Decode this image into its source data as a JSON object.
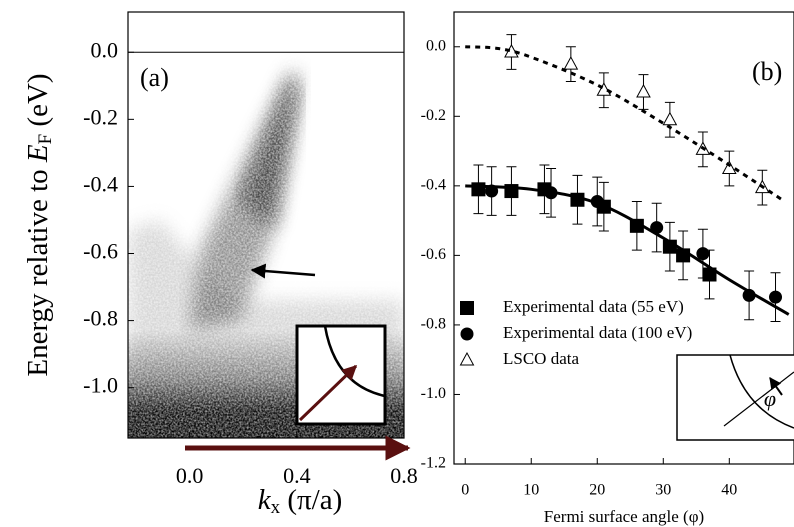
{
  "chart_data": [
    {
      "type": "heatmap",
      "annotation": "(a)",
      "ylabel": {
        "text": "Energy relative to ",
        "var": "E",
        "sub": "F",
        "unit": " (eV)"
      },
      "xlabel": {
        "var": "k",
        "sub": "x",
        "unit": " (π/a)"
      },
      "xlim": [
        -0.23,
        0.8
      ],
      "ylim": [
        -1.15,
        0.12
      ],
      "xticks": [
        {
          "value": 0,
          "label": "0.0"
        },
        0.4,
        0.8
      ],
      "yticks": [
        {
          "value": 0,
          "label": "0.0"
        },
        -0.2,
        -0.4,
        -0.6,
        -0.8,
        {
          "value": -1,
          "label": "-1.0"
        }
      ]
    },
    {
      "type": "scatter",
      "annotation": "(b)",
      "inset_label": "φ",
      "xlabel": "Fermi surface angle (φ)",
      "xlim": [
        -1.7,
        49.8
      ],
      "ylim": [
        -1.2,
        0.1
      ],
      "xticks": [
        0,
        10,
        20,
        30,
        40
      ],
      "yticks": [
        {
          "value": 0,
          "label": "0.0"
        },
        -0.2,
        -0.4,
        -0.6,
        -0.8,
        {
          "value": -1,
          "label": "-1.0"
        },
        -1.2
      ],
      "series": [
        {
          "name": "Experimental data (55 eV)",
          "marker": "square",
          "color": "#000",
          "x": [
            2,
            7,
            12,
            17,
            21,
            26,
            31,
            33,
            37
          ],
          "values": [
            -0.41,
            -0.415,
            -0.41,
            -0.44,
            -0.46,
            -0.515,
            -0.575,
            -0.6,
            -0.655
          ],
          "errors": [
            0.07,
            0.07,
            0.07,
            0.07,
            0.07,
            0.07,
            0.07,
            0.07,
            0.07
          ]
        },
        {
          "name": "Experimental data (100 eV)",
          "marker": "circle",
          "color": "#000",
          "x": [
            4,
            13,
            20,
            29,
            36,
            43,
            47
          ],
          "values": [
            -0.415,
            -0.42,
            -0.445,
            -0.52,
            -0.595,
            -0.715,
            -0.72
          ],
          "errors": [
            0.07,
            0.07,
            0.07,
            0.07,
            0.07,
            0.07,
            0.07
          ]
        },
        {
          "name": "LSCO data",
          "marker": "triangle",
          "color": "#000",
          "x": [
            7,
            16,
            21,
            27,
            31,
            36,
            40,
            45
          ],
          "values": [
            -0.015,
            -0.05,
            -0.125,
            -0.13,
            -0.21,
            -0.295,
            -0.35,
            -0.405
          ],
          "errors": [
            0.05,
            0.05,
            0.05,
            0.05,
            0.05,
            0.05,
            0.05,
            0.05
          ]
        },
        {
          "marker": "line",
          "dash": false,
          "color": "#000",
          "x": [
            0,
            10,
            20,
            30,
            40,
            49
          ],
          "values": [
            -0.4,
            -0.41,
            -0.45,
            -0.55,
            -0.67,
            -0.77
          ]
        },
        {
          "marker": "line",
          "dash": true,
          "color": "#000",
          "x": [
            0,
            5,
            10,
            20,
            30,
            40,
            48
          ],
          "values": [
            0,
            -0.005,
            -0.03,
            -0.11,
            -0.22,
            -0.34,
            -0.44
          ]
        }
      ]
    }
  ]
}
